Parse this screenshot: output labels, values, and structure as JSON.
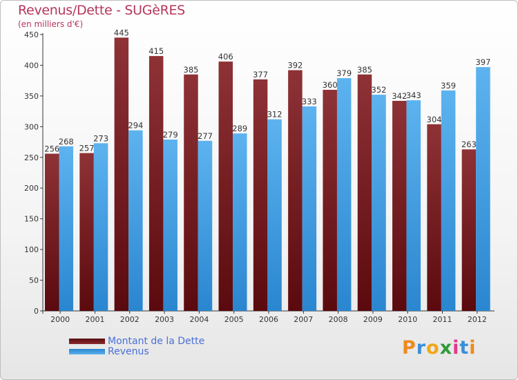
{
  "header": {
    "title": "Revenus/Dette - SUGèRES",
    "subtitle": "(en milliers d'€)"
  },
  "logo": {
    "letters": [
      "P",
      "r",
      "o",
      "x",
      "i",
      "t",
      "i"
    ],
    "colors": [
      "#f08a1c",
      "#3b8fd8",
      "#f0a818",
      "#2e9a3c",
      "#e03a8a",
      "#3b8fd8",
      "#f08a1c"
    ]
  },
  "chart_data": {
    "type": "bar",
    "categories": [
      "2000",
      "2001",
      "2002",
      "2003",
      "2004",
      "2005",
      "2006",
      "2007",
      "2008",
      "2009",
      "2010",
      "2011",
      "2012"
    ],
    "series": [
      {
        "name": "Montant de la Dette",
        "color": "#7a1e22",
        "values": [
          256,
          257,
          445,
          415,
          385,
          406,
          377,
          392,
          360,
          385,
          342,
          304,
          263
        ]
      },
      {
        "name": "Revenus",
        "color": "#4aa3e6",
        "values": [
          268,
          273,
          294,
          279,
          277,
          289,
          312,
          333,
          379,
          352,
          343,
          359,
          397
        ]
      }
    ],
    "ylim": [
      0,
      450
    ],
    "yticks": [
      0,
      50,
      100,
      150,
      200,
      250,
      300,
      350,
      400,
      450
    ],
    "grid": false,
    "legend": "bottom-left"
  }
}
